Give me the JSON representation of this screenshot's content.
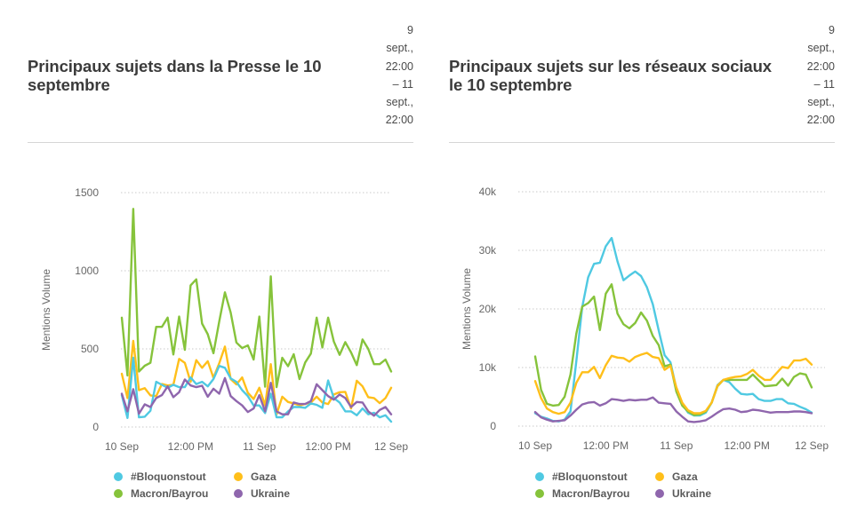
{
  "panels": [
    {
      "title": "Principaux sujets dans la Presse le 10 septembre",
      "date_range_lines": [
        "9",
        "sept.,",
        "22:00",
        "– 11",
        "sept.,",
        "22:00"
      ]
    },
    {
      "title": "Principaux sujets sur les réseaux sociaux le 10 septembre",
      "date_range_lines": [
        "9",
        "sept.,",
        "22:00",
        "– 11",
        "sept.,",
        "22:00"
      ]
    }
  ],
  "legend": [
    {
      "name": "#Bloquonstout",
      "color": "#4fc9e2"
    },
    {
      "name": "Gaza",
      "color": "#ffbf1a"
    },
    {
      "name": "Macron/Bayrou",
      "color": "#86c33b"
    },
    {
      "name": "Ukraine",
      "color": "#8f66ad"
    }
  ],
  "chart_data": [
    {
      "type": "line",
      "title": "Principaux sujets dans la Presse le 10 septembre",
      "xlabel": "",
      "ylabel": "Mentions Volume",
      "ylim": [
        0,
        1500
      ],
      "yticks": [
        0,
        500,
        1000,
        1500
      ],
      "ytick_labels": [
        "0",
        "500",
        "1000",
        "1500"
      ],
      "x_range_hours": [
        0,
        47
      ],
      "xticks_hours": [
        0,
        12,
        24,
        36,
        47
      ],
      "xtick_labels": [
        "10 Sep",
        "12:00 PM",
        "11 Sep",
        "12:00 PM",
        "12 Sep"
      ],
      "grid": true,
      "legend_position": "bottom",
      "series": [
        {
          "name": "#Bloquonstout",
          "color": "#4fc9e2",
          "values": [
            204,
            58,
            443,
            62,
            66,
            104,
            289,
            270,
            251,
            270,
            255,
            255,
            317,
            275,
            289,
            260,
            307,
            391,
            379,
            311,
            289,
            236,
            198,
            138,
            138,
            89,
            213,
            62,
            62,
            100,
            128,
            128,
            123,
            151,
            142,
            123,
            298,
            185,
            157,
            100,
            100,
            75,
            119,
            81,
            91,
            62,
            75,
            34
          ]
        },
        {
          "name": "Gaza",
          "color": "#ffbf1a",
          "values": [
            341,
            185,
            551,
            236,
            249,
            202,
            198,
            275,
            266,
            270,
            436,
            411,
            289,
            428,
            379,
            421,
            315,
            408,
            515,
            307,
            273,
            317,
            219,
            179,
            251,
            138,
            402,
            81,
            194,
            160,
            151,
            138,
            147,
            157,
            194,
            157,
            147,
            208,
            223,
            225,
            119,
            296,
            260,
            191,
            185,
            153,
            185,
            251
          ]
        },
        {
          "name": "Macron/Bayrou",
          "color": "#86c33b",
          "values": [
            700,
            330,
            1396,
            355,
            392,
            411,
            641,
            641,
            700,
            464,
            707,
            494,
            907,
            945,
            662,
            594,
            472,
            675,
            862,
            732,
            541,
            505,
            522,
            432,
            707,
            258,
            964,
            255,
            443,
            389,
            466,
            307,
            413,
            470,
            700,
            509,
            700,
            547,
            462,
            543,
            477,
            396,
            560,
            500,
            402,
            402,
            432,
            355
          ]
        },
        {
          "name": "Ukraine",
          "color": "#8f66ad",
          "values": [
            213,
            100,
            242,
            85,
            145,
            128,
            185,
            204,
            260,
            191,
            223,
            304,
            266,
            255,
            264,
            194,
            245,
            213,
            313,
            198,
            166,
            138,
            96,
            119,
            204,
            100,
            283,
            100,
            81,
            81,
            157,
            147,
            147,
            166,
            274,
            236,
            198,
            175,
            208,
            185,
            128,
            160,
            157,
            100,
            72,
            109,
            128,
            81
          ]
        }
      ]
    },
    {
      "type": "line",
      "title": "Principaux sujets sur les réseaux sociaux le 10 septembre",
      "xlabel": "",
      "ylabel": "Mentions Volume",
      "ylim": [
        0,
        40000
      ],
      "yticks": [
        0,
        10000,
        20000,
        30000,
        40000
      ],
      "ytick_labels": [
        "0",
        "10k",
        "20k",
        "30k",
        "40k"
      ],
      "x_range_hours": [
        0,
        47
      ],
      "xticks_hours": [
        0,
        12,
        24,
        36,
        47
      ],
      "xtick_labels": [
        "10 Sep",
        "12:00 PM",
        "11 Sep",
        "12:00 PM",
        "12 Sep"
      ],
      "grid": true,
      "legend_position": "bottom",
      "series": [
        {
          "name": "#Bloquonstout",
          "color": "#4fc9e2",
          "values": [
            2200,
            1600,
            1300,
            900,
            800,
            1100,
            2500,
            11100,
            20300,
            25400,
            27700,
            27900,
            30700,
            32100,
            28100,
            24900,
            25700,
            26400,
            25600,
            23700,
            20800,
            16300,
            12100,
            10900,
            6400,
            3800,
            2300,
            1800,
            1800,
            2300,
            4000,
            7000,
            7900,
            7500,
            6400,
            5500,
            5400,
            5500,
            4600,
            4300,
            4300,
            4600,
            4600,
            3900,
            3800,
            3300,
            2900,
            2300
          ]
        },
        {
          "name": "Gaza",
          "color": "#ffbf1a",
          "values": [
            7700,
            4800,
            3000,
            2400,
            2100,
            2400,
            4000,
            7400,
            9200,
            9200,
            10100,
            8200,
            10400,
            12000,
            11700,
            11600,
            11000,
            11800,
            12200,
            12500,
            11800,
            11600,
            9600,
            10300,
            6600,
            4000,
            2700,
            2200,
            2200,
            2600,
            4000,
            6900,
            7900,
            8200,
            8400,
            8500,
            8900,
            9600,
            8600,
            7900,
            7900,
            9000,
            10100,
            9900,
            11200,
            11200,
            11500,
            10500
          ]
        },
        {
          "name": "Macron/Bayrou",
          "color": "#86c33b",
          "values": [
            11900,
            6200,
            3800,
            3500,
            3600,
            5000,
            8800,
            15800,
            20400,
            21000,
            22100,
            16400,
            22600,
            24200,
            19200,
            17400,
            16700,
            17600,
            19400,
            18000,
            15400,
            13800,
            10200,
            10500,
            5900,
            3500,
            2500,
            1900,
            2000,
            2500,
            4000,
            6800,
            7900,
            7900,
            7900,
            7900,
            7900,
            8800,
            7800,
            6800,
            6900,
            7000,
            8100,
            6900,
            8400,
            9000,
            8800,
            6600
          ]
        },
        {
          "name": "Ukraine",
          "color": "#8f66ad",
          "values": [
            2400,
            1500,
            1100,
            800,
            900,
            1000,
            1800,
            2800,
            3700,
            4000,
            4100,
            3500,
            3900,
            4600,
            4500,
            4300,
            4500,
            4400,
            4500,
            4500,
            4900,
            4000,
            3900,
            3800,
            2500,
            1600,
            800,
            700,
            800,
            1000,
            1600,
            2300,
            2900,
            3000,
            2800,
            2400,
            2500,
            2800,
            2700,
            2500,
            2300,
            2400,
            2400,
            2400,
            2500,
            2500,
            2400,
            2200
          ]
        }
      ]
    }
  ]
}
